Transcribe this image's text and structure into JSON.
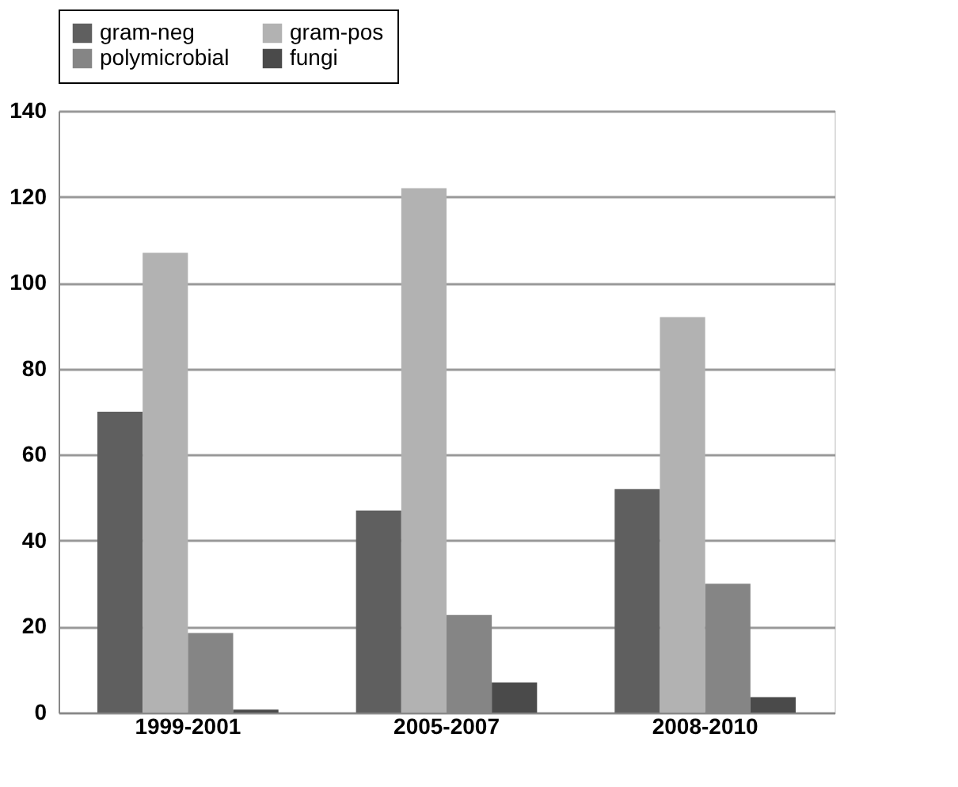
{
  "chart_data": {
    "type": "bar",
    "categories": [
      "1999-2001",
      "2005-2007",
      "2008-2010"
    ],
    "series": [
      {
        "name": "gram-neg",
        "color": "#5f5f5f",
        "values": [
          70,
          47,
          52
        ]
      },
      {
        "name": "gram-pos",
        "color": "#b2b2b2",
        "values": [
          107,
          122,
          92
        ]
      },
      {
        "name": "polymicrobial",
        "color": "#858585",
        "values": [
          18.5,
          22.7,
          30
        ]
      },
      {
        "name": "fungi",
        "color": "#4a4a4a",
        "values": [
          0.7,
          7,
          3.6
        ]
      }
    ],
    "ylim": [
      0,
      140
    ],
    "yticks": [
      0,
      20,
      40,
      60,
      80,
      100,
      120,
      140
    ],
    "grid": "y",
    "legend": "top"
  }
}
